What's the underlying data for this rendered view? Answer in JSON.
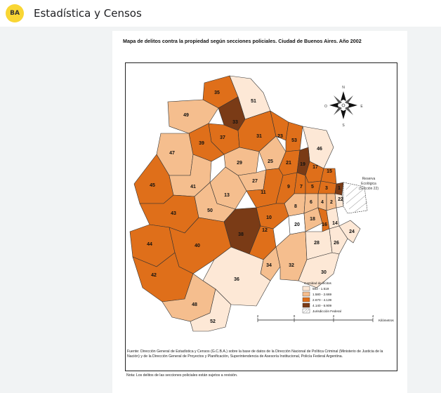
{
  "app": {
    "logo_text": "BA",
    "title": "Estadística y Censos"
  },
  "document": {
    "title": "Mapa de delitos contra la propiedad según secciones policiales. Ciudad de Buenos Aires. Año 2002",
    "source": "Fuente: Dirección General de Estadística y Censos (G.C.B.A.) sobre la base de datos de la Dirección Nacional de Política Criminal (Ministerio de Justicia de la Nación) y de la Dirección General de Proyectos y Planificación, Superintendencia de Asesoría Institucional, Policía Federal Argentina.",
    "note": "Nota: Los delitos de las secciones policiales están sujetos a revisión."
  },
  "map": {
    "compass": {
      "n": "N",
      "s": "S",
      "e": "E",
      "o": "O"
    },
    "reserve_label": [
      "Reserva",
      "Ecológica",
      "(Sección 22)"
    ],
    "legend": {
      "title": "Cantidad de ilícitos",
      "items": [
        {
          "label": "593 - 1.519",
          "color": "#fde8d6"
        },
        {
          "label": "1.580 - 2.669",
          "color": "#f5be8e"
        },
        {
          "label": "2.670 - 4.139",
          "color": "#df6f1a"
        },
        {
          "label": "4.140 - 6.909",
          "color": "#7a3b16"
        },
        {
          "label": "Jurisdicción Federal",
          "color": "#ffffff"
        }
      ]
    },
    "scale": {
      "ticks": [
        "2",
        "0",
        "2",
        "4"
      ],
      "unit": "Kilómetros"
    },
    "sections": [
      "1",
      "2",
      "3",
      "4",
      "5",
      "6",
      "7",
      "8",
      "9",
      "10",
      "11",
      "12",
      "13",
      "14",
      "15",
      "16",
      "17",
      "18",
      "19",
      "20",
      "21",
      "22",
      "23",
      "24",
      "25",
      "26",
      "27",
      "28",
      "29",
      "30",
      "31",
      "32",
      "33",
      "34",
      "35",
      "36",
      "37",
      "38",
      "39",
      "40",
      "41",
      "42",
      "43",
      "44",
      "45",
      "46",
      "47",
      "48",
      "49",
      "50",
      "51",
      "52",
      "53"
    ]
  }
}
